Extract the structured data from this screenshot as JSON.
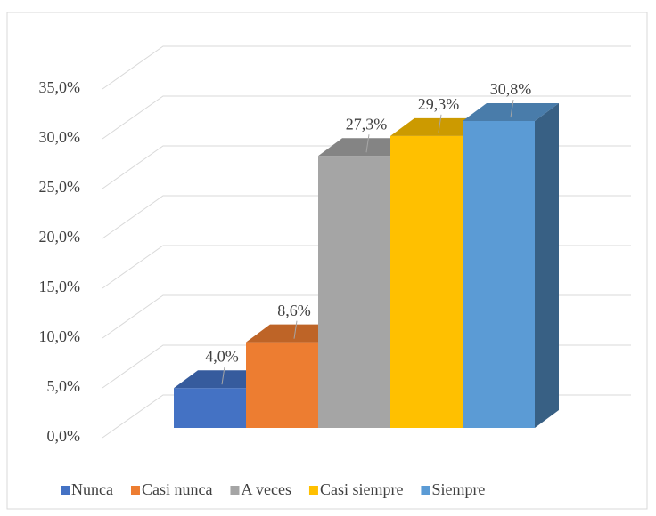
{
  "chart_data": {
    "type": "bar",
    "series": [
      {
        "name": "Nunca",
        "color": "#4472c4",
        "values": [
          4.0
        ],
        "value_labels": [
          "4,0%"
        ]
      },
      {
        "name": "Casi nunca",
        "color": "#ed7d31",
        "values": [
          8.6
        ],
        "value_labels": [
          "8,6%"
        ]
      },
      {
        "name": "A veces",
        "color": "#a5a5a5",
        "values": [
          27.3
        ],
        "value_labels": [
          "27,3%"
        ]
      },
      {
        "name": "Casi siempre",
        "color": "#ffc000",
        "values": [
          29.3
        ],
        "value_labels": [
          "29,3%"
        ]
      },
      {
        "name": "Siempre",
        "color": "#5b9bd5",
        "values": [
          30.8
        ],
        "value_labels": [
          "30,8%"
        ]
      }
    ],
    "ylim": [
      0,
      35
    ],
    "yticks": [
      {
        "value": 0,
        "label": "0,0%"
      },
      {
        "value": 5,
        "label": "5,0%"
      },
      {
        "value": 10,
        "label": "10,0%"
      },
      {
        "value": 15,
        "label": "15,0%"
      },
      {
        "value": 20,
        "label": "20,0%"
      },
      {
        "value": 25,
        "label": "25,0%"
      },
      {
        "value": 30,
        "label": "30,0%"
      },
      {
        "value": 35,
        "label": "35,0%"
      }
    ],
    "grid": true,
    "legend": "bottom"
  }
}
